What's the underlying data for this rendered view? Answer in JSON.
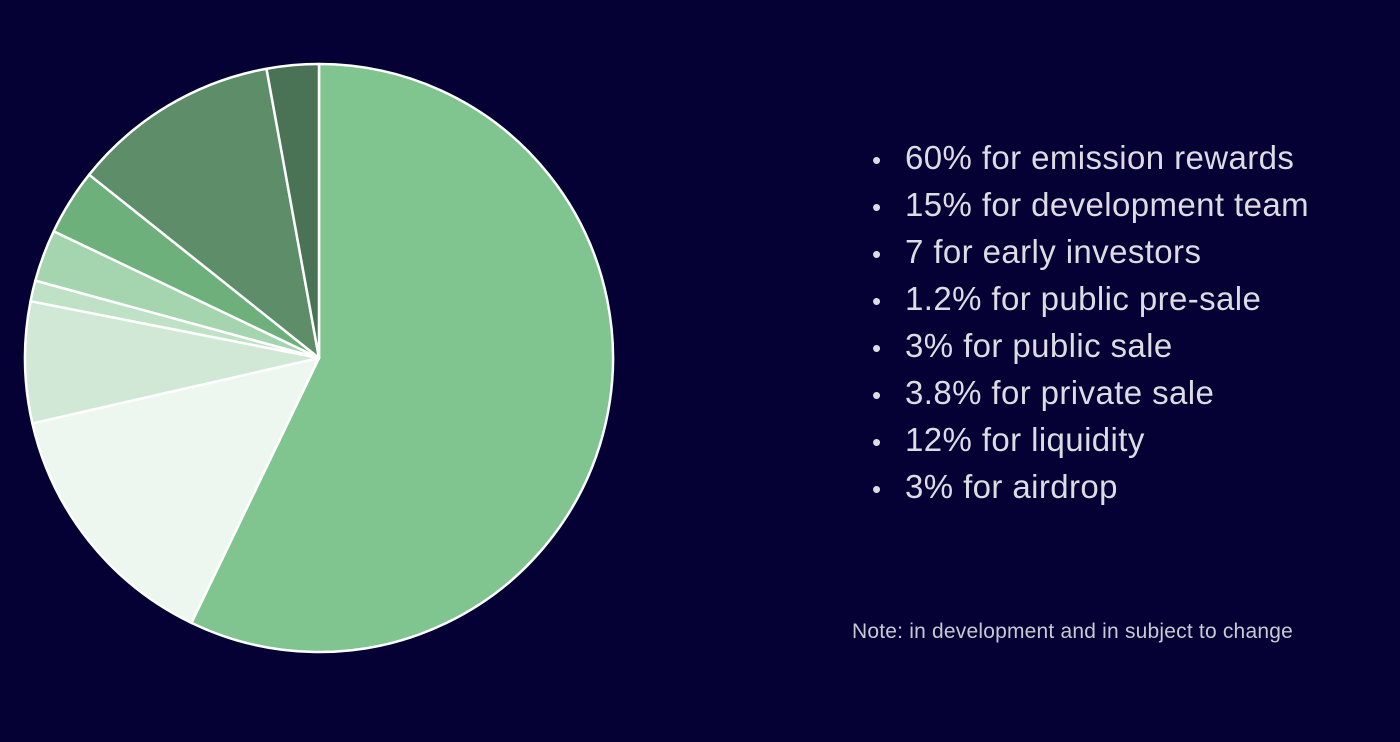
{
  "chart_data": {
    "type": "pie",
    "start_angle_deg": 0,
    "direction": "clockwise",
    "slice_stroke": "#ffffff",
    "slices": [
      {
        "label": "60% for emission rewards",
        "value": 60,
        "color": "#80c48f"
      },
      {
        "label": "15% for development team",
        "value": 15,
        "color": "#edf6ef"
      },
      {
        "label": "7 for early investors",
        "value": 7,
        "color": "#d0e8d5"
      },
      {
        "label": "1.2% for public pre-sale",
        "value": 1.2,
        "color": "#bfe1c6"
      },
      {
        "label": "3% for public sale",
        "value": 3,
        "color": "#a4d5ae"
      },
      {
        "label": "3.8% for private sale",
        "value": 3.8,
        "color": "#6eb07b"
      },
      {
        "label": "12% for liquidity",
        "value": 12,
        "color": "#5d8d69"
      },
      {
        "label": "3% for airdrop",
        "value": 3,
        "color": "#4a7355"
      }
    ]
  },
  "legend_items": [
    "60% for emission rewards",
    "15% for development team",
    "7 for early investors",
    "1.2% for public pre-sale",
    "3% for public sale",
    "3.8% for private sale",
    "12% for liquidity",
    "3% for airdrop"
  ],
  "bullet": "•",
  "note": "Note: in development and in subject to change",
  "colors": {
    "background": "#050134",
    "text": "#dcdce4"
  }
}
